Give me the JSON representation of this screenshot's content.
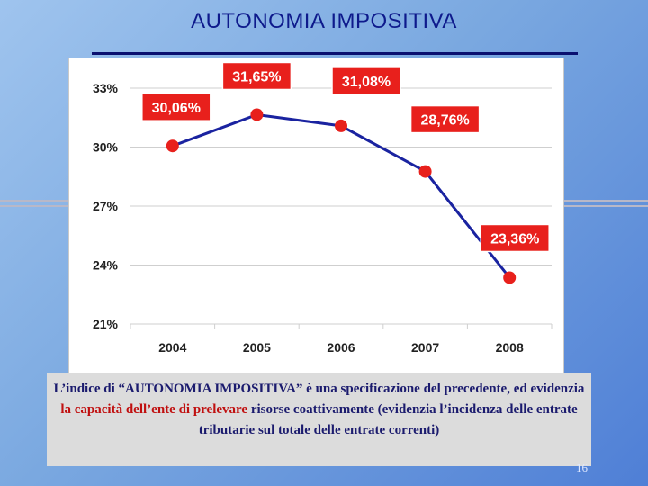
{
  "slide": {
    "title": "AUTONOMIA IMPOSITIVA",
    "page_number": "16",
    "caption_part1": "L’indice di “AUTONOMIA IMPOSITIVA” è una specificazione del precedente, ed evidenzia ",
    "caption_highlight": "la capacità dell’ente di prelevare",
    "caption_part2": " risorse coattivamente (evidenzia l’incidenza delle entrate tributarie sul totale delle entrate correnti)"
  },
  "colors": {
    "line": "#1a23a0",
    "marker": "#e8201c",
    "label_bg": "#e8201c",
    "label_text": "#ffffff",
    "title": "#0e1a8c",
    "caption_highlight": "#c01010"
  },
  "chart_data": {
    "type": "line",
    "categories": [
      "2004",
      "2005",
      "2006",
      "2007",
      "2008"
    ],
    "series": [
      {
        "values": [
          30.06,
          31.65,
          31.08,
          28.76,
          23.36
        ]
      }
    ],
    "data_labels": [
      "30,06%",
      "31,65%",
      "31,08%",
      "28,76%",
      "23,36%"
    ],
    "y_ticks": [
      "21%",
      "24%",
      "27%",
      "30%",
      "33%"
    ],
    "ylim": [
      21,
      33
    ],
    "grid": true,
    "title": "",
    "xlabel": "",
    "ylabel": ""
  }
}
